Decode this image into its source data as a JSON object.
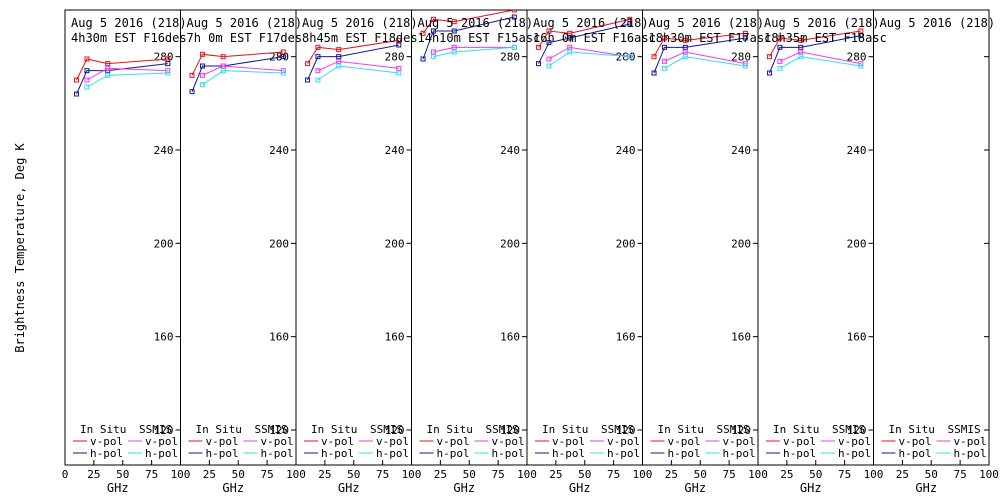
{
  "figure": {
    "ylabel": "Brightness Temperature, Deg K",
    "xlabel": "GHz"
  },
  "axes": {
    "x_ticks": [
      0,
      25,
      50,
      75,
      100
    ],
    "x_tick_labels": [
      "0",
      "25",
      "50",
      "75",
      "100"
    ],
    "y_ticks": [
      120,
      160,
      200,
      240,
      280
    ],
    "y_tick_labels": [
      "120",
      "160",
      "200",
      "240",
      "280"
    ],
    "xlim": [
      0,
      100
    ],
    "ylim": [
      105,
      300
    ]
  },
  "legend": {
    "group_insitu": "In Situ",
    "group_ssmis": "SSMIS",
    "vpol": "v-pol",
    "hpol": "h-pol"
  },
  "colors": {
    "insitu_v": "#e8101a",
    "insitu_h": "#141496",
    "ssmis_v": "#ee3cee",
    "ssmis_h": "#36dcf0",
    "frame": "#000000"
  },
  "chart_data": [
    {
      "type": "line",
      "title": "Aug 5 2016 (218)",
      "subtitle": "4h30m EST F16des",
      "x": [
        10,
        19,
        37,
        89
      ],
      "series": [
        {
          "name": "In Situ v-pol",
          "values": [
            270,
            279,
            277,
            279
          ]
        },
        {
          "name": "In Situ h-pol",
          "values": [
            264,
            274,
            274,
            277
          ]
        },
        {
          "name": "SSMIS v-pol",
          "values": [
            null,
            270,
            275,
            274
          ]
        },
        {
          "name": "SSMIS h-pol",
          "values": [
            null,
            267,
            272,
            273
          ]
        }
      ]
    },
    {
      "type": "line",
      "title": "Aug 5 2016 (218)",
      "subtitle": "7h 0m  EST F17des",
      "x": [
        10,
        19,
        37,
        89
      ],
      "series": [
        {
          "name": "In Situ v-pol",
          "values": [
            272,
            281,
            280,
            282
          ]
        },
        {
          "name": "In Situ h-pol",
          "values": [
            265,
            276,
            276,
            280
          ]
        },
        {
          "name": "SSMIS v-pol",
          "values": [
            null,
            272,
            276,
            274
          ]
        },
        {
          "name": "SSMIS h-pol",
          "values": [
            null,
            268,
            274,
            273
          ]
        }
      ]
    },
    {
      "type": "line",
      "title": "Aug 5 2016 (218)",
      "subtitle": "8h45m EST F18des",
      "x": [
        10,
        19,
        37,
        89
      ],
      "series": [
        {
          "name": "In Situ v-pol",
          "values": [
            277,
            284,
            283,
            287
          ]
        },
        {
          "name": "In Situ h-pol",
          "values": [
            270,
            280,
            280,
            285
          ]
        },
        {
          "name": "SSMIS v-pol",
          "values": [
            null,
            274,
            278,
            275
          ]
        },
        {
          "name": "SSMIS h-pol",
          "values": [
            null,
            270,
            276,
            273
          ]
        }
      ]
    },
    {
      "type": "line",
      "title": "Aug 5 2016 (218)",
      "subtitle": "14h10m EST F15asc",
      "x": [
        10,
        19,
        37,
        89
      ],
      "series": [
        {
          "name": "In Situ v-pol",
          "values": [
            290,
            296,
            295,
            300
          ]
        },
        {
          "name": "In Situ h-pol",
          "values": [
            279,
            291,
            291,
            297
          ]
        },
        {
          "name": "SSMIS v-pol",
          "values": [
            null,
            282,
            284,
            284
          ]
        },
        {
          "name": "SSMIS h-pol",
          "values": [
            null,
            280,
            282,
            284
          ]
        }
      ]
    },
    {
      "type": "line",
      "title": "Aug 5 2016 (218)",
      "subtitle": "16h 0m EST F16asc",
      "x": [
        10,
        19,
        37,
        89
      ],
      "series": [
        {
          "name": "In Situ v-pol",
          "values": [
            284,
            291,
            290,
            296
          ]
        },
        {
          "name": "In Situ h-pol",
          "values": [
            277,
            286,
            288,
            294
          ]
        },
        {
          "name": "SSMIS v-pol",
          "values": [
            null,
            279,
            284,
            280
          ]
        },
        {
          "name": "SSMIS h-pol",
          "values": [
            null,
            276,
            282,
            280
          ]
        }
      ]
    },
    {
      "type": "line",
      "title": "Aug 5 2016 (218)",
      "subtitle": "18h30m EST F17asc",
      "x": [
        10,
        19,
        37,
        89
      ],
      "series": [
        {
          "name": "In Situ v-pol",
          "values": [
            280,
            288,
            287,
            290
          ]
        },
        {
          "name": "In Situ h-pol",
          "values": [
            273,
            284,
            284,
            288
          ]
        },
        {
          "name": "SSMIS v-pol",
          "values": [
            null,
            278,
            282,
            277
          ]
        },
        {
          "name": "SSMIS h-pol",
          "values": [
            null,
            275,
            280,
            276
          ]
        }
      ]
    },
    {
      "type": "line",
      "title": "Aug 5 2016 (218)",
      "subtitle": "18h35m EST F18asc",
      "x": [
        10,
        19,
        37,
        89
      ],
      "series": [
        {
          "name": "In Situ v-pol",
          "values": [
            280,
            288,
            287,
            291
          ]
        },
        {
          "name": "In Situ h-pol",
          "values": [
            273,
            284,
            284,
            289
          ]
        },
        {
          "name": "SSMIS v-pol",
          "values": [
            null,
            278,
            282,
            277
          ]
        },
        {
          "name": "SSMIS h-pol",
          "values": [
            null,
            275,
            280,
            276
          ]
        }
      ]
    },
    {
      "type": "line",
      "title": "Aug 5 2016 (218)",
      "subtitle": "",
      "x": [],
      "series": [
        {
          "name": "In Situ v-pol",
          "values": []
        },
        {
          "name": "In Situ h-pol",
          "values": []
        },
        {
          "name": "SSMIS v-pol",
          "values": []
        },
        {
          "name": "SSMIS h-pol",
          "values": []
        }
      ]
    }
  ]
}
